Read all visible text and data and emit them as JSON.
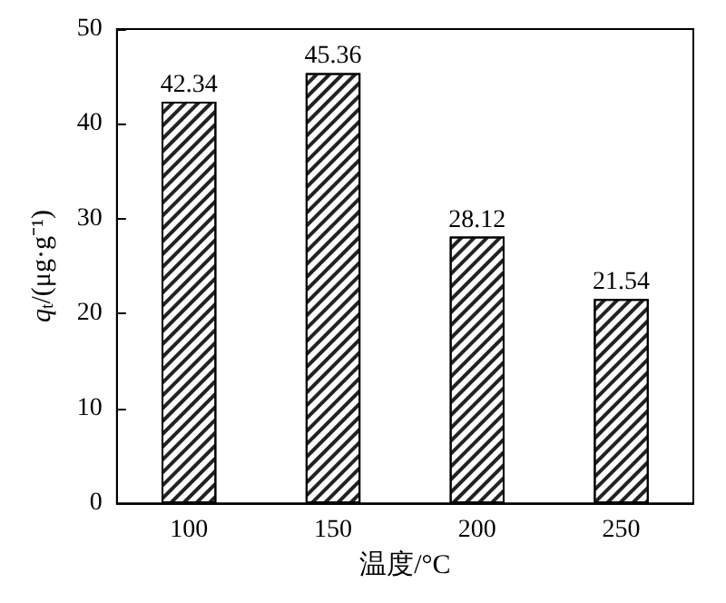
{
  "chart_data": {
    "type": "bar",
    "xlabel": "温度/°C",
    "ylabel": "q$_{t}$/(μg·g⁻¹)",
    "categories": [
      "100",
      "150",
      "200",
      "250"
    ],
    "values": [
      42.34,
      45.36,
      28.12,
      21.54
    ],
    "color": "#ffffff",
    "data_labels": true,
    "ylim": [
      0,
      50
    ],
    "yticks": [
      0,
      10,
      20,
      30,
      40,
      50
    ],
    "grid": false
  }
}
